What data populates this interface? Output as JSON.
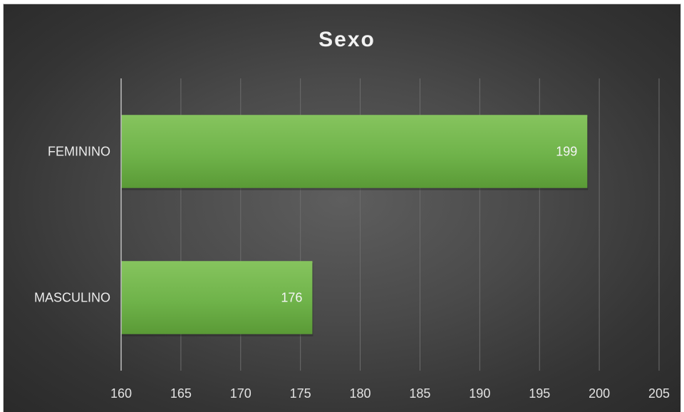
{
  "chart_data": {
    "type": "bar",
    "orientation": "horizontal",
    "title": "Sexo",
    "categories": [
      "FEMININO",
      "MASCULINO"
    ],
    "values": [
      199,
      176
    ],
    "data_labels": [
      "199",
      "176"
    ],
    "xlim": [
      160,
      205
    ],
    "x_ticks": [
      160,
      165,
      170,
      175,
      180,
      185,
      190,
      195,
      200,
      205
    ],
    "x_tick_labels": [
      "160",
      "165",
      "170",
      "175",
      "180",
      "185",
      "190",
      "195",
      "200",
      "205"
    ],
    "xlabel": "",
    "ylabel": "",
    "grid": true,
    "legend": "none",
    "colors": {
      "bar": "#6fb34a",
      "bar_light": "#86c45e",
      "bar_dark": "#5a9a36",
      "background": "#464646"
    }
  }
}
